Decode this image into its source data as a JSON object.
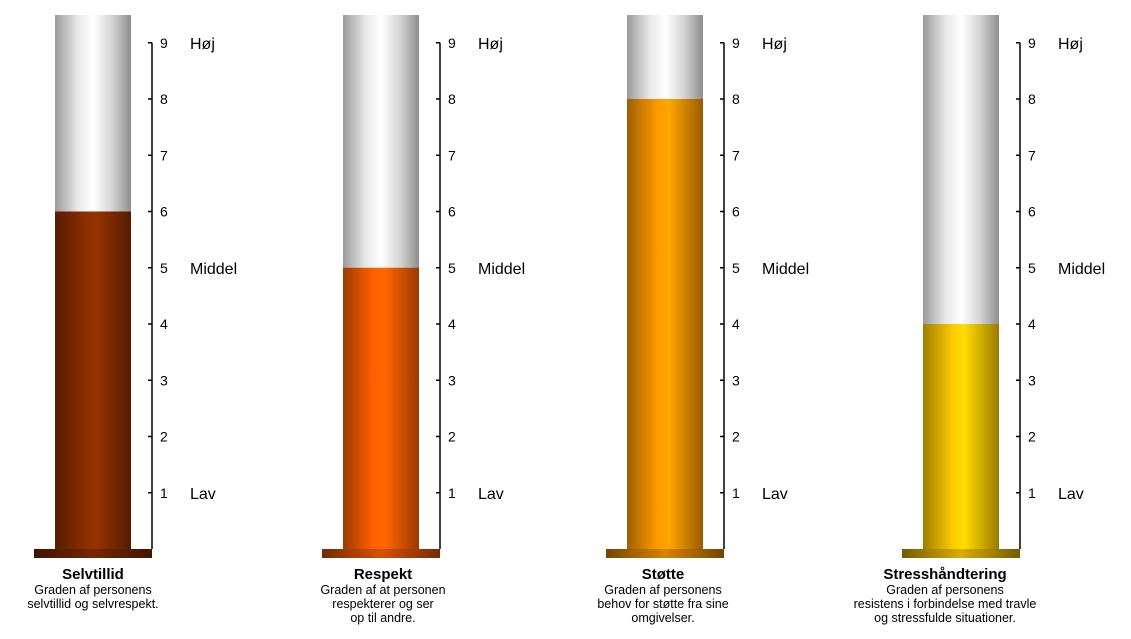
{
  "chart_data": {
    "type": "bar",
    "ylim": [
      0,
      9
    ],
    "yticks": [
      1,
      2,
      3,
      4,
      5,
      6,
      7,
      8,
      9
    ],
    "level_labels": {
      "high": "Høj",
      "mid": "Middel",
      "low": "Lav"
    },
    "categories": [
      "Selvtillid",
      "Respekt",
      "Støtte",
      "Stresshåndtering"
    ],
    "values": [
      6,
      5,
      8,
      4
    ],
    "gauges": [
      {
        "title": "Selvtillid",
        "value": 6,
        "color": "#8B2E00",
        "description": [
          "Graden af  personens",
          "selvtillid og selvrespekt."
        ]
      },
      {
        "title": "Respekt",
        "value": 5,
        "color": "#FF5F00",
        "description": [
          "Graden af at personen",
          "respekterer og ser",
          "op til andre."
        ]
      },
      {
        "title": "Støtte",
        "value": 8,
        "color": "#FF9900",
        "description": [
          "Graden af personens",
          "behov for støtte fra sine",
          "omgivelser."
        ]
      },
      {
        "title": "Stresshåndtering",
        "value": 4,
        "color": "#FFCC00",
        "description": [
          "Graden af personens",
          "resistens i forbindelse med travle",
          "og stressfulde  situationer."
        ]
      }
    ]
  }
}
